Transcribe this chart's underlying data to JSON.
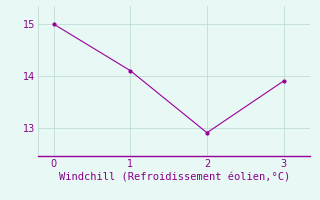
{
  "x": [
    0,
    1,
    2,
    3
  ],
  "y": [
    15.0,
    14.1,
    12.9,
    13.9
  ],
  "line_color": "#990099",
  "marker": ".",
  "marker_size": 4,
  "background_color": "#e8f8f4",
  "grid_color": "#c0ddd8",
  "xlabel": "Windchill (Refroidissement éolien,°C)",
  "xlabel_color": "#880088",
  "xlabel_fontsize": 7.5,
  "tick_label_color": "#880088",
  "yticks": [
    13,
    14,
    15
  ],
  "xticks": [
    0,
    1,
    2,
    3
  ],
  "ylim": [
    12.45,
    15.35
  ],
  "xlim": [
    -0.2,
    3.35
  ],
  "line_width": 0.8
}
